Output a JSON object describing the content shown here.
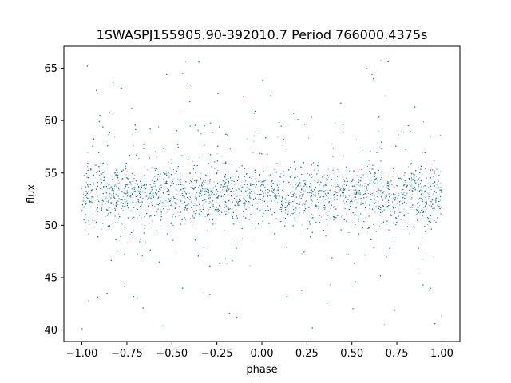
{
  "chart_data": {
    "type": "scatter",
    "title": "1SWASPJ155905.90-392010.7 Period 766000.4375s",
    "xlabel": "phase",
    "ylabel": "flux",
    "xlim": [
      -1.1,
      1.1
    ],
    "ylim": [
      38.9,
      67.1
    ],
    "xticks": [
      -1.0,
      -0.75,
      -0.5,
      -0.25,
      0.0,
      0.25,
      0.5,
      0.75,
      1.0
    ],
    "xtick_labels": [
      "−1.00",
      "−0.75",
      "−0.50",
      "−0.25",
      "0.00",
      "0.25",
      "0.50",
      "0.75",
      "1.00"
    ],
    "yticks": [
      40,
      45,
      50,
      55,
      60,
      65
    ],
    "ytick_labels": [
      "40",
      "45",
      "50",
      "55",
      "60",
      "65"
    ],
    "grid": false,
    "legend": "none",
    "marker_color": "#1f77b4",
    "series": [
      {
        "x_range": [
          -1.0,
          1.0
        ],
        "core_flux_range": [
          49.0,
          57.0
        ],
        "typical_flux_range": [
          46.0,
          60.0
        ],
        "extreme_flux_range": [
          40.0,
          66.0
        ],
        "points": [
          [
            -0.98,
            52.1
          ],
          [
            -0.95,
            55.4
          ],
          [
            -0.92,
            50.3
          ],
          [
            -0.88,
            53.7
          ],
          [
            -0.84,
            51.2
          ],
          [
            -0.8,
            54.8
          ],
          [
            -0.76,
            49.8
          ],
          [
            -0.72,
            53.0
          ],
          [
            -0.69,
            47.2
          ],
          [
            -0.65,
            55.6
          ],
          [
            -0.61,
            51.9
          ],
          [
            -0.57,
            46.5
          ],
          [
            -0.53,
            54.2
          ],
          [
            -0.49,
            52.7
          ],
          [
            -0.45,
            50.1
          ],
          [
            -0.41,
            56.3
          ],
          [
            -0.37,
            48.6
          ],
          [
            -0.33,
            53.5
          ],
          [
            -0.29,
            51.0
          ],
          [
            -0.25,
            55.0
          ],
          [
            -0.21,
            49.5
          ],
          [
            -0.17,
            52.8
          ],
          [
            -0.13,
            54.6
          ],
          [
            -0.09,
            50.7
          ],
          [
            -0.05,
            53.9
          ],
          [
            -0.01,
            51.4
          ],
          [
            0.03,
            56.8
          ],
          [
            0.07,
            49.2
          ],
          [
            0.11,
            52.3
          ],
          [
            0.15,
            54.1
          ],
          [
            0.19,
            50.6
          ],
          [
            0.23,
            53.3
          ],
          [
            0.27,
            48.9
          ],
          [
            0.31,
            55.7
          ],
          [
            0.35,
            51.7
          ],
          [
            0.39,
            46.9
          ],
          [
            0.43,
            53.6
          ],
          [
            0.47,
            50.4
          ],
          [
            0.51,
            55.2
          ],
          [
            0.55,
            52.0
          ],
          [
            0.59,
            49.7
          ],
          [
            0.63,
            54.4
          ],
          [
            0.67,
            51.3
          ],
          [
            0.71,
            47.8
          ],
          [
            0.75,
            53.8
          ],
          [
            0.79,
            50.9
          ],
          [
            0.83,
            55.9
          ],
          [
            0.87,
            52.5
          ],
          [
            0.91,
            49.4
          ],
          [
            0.95,
            54.0
          ],
          [
            0.99,
            51.6
          ],
          [
            -0.9,
            60.5
          ],
          [
            -0.78,
            63.1
          ],
          [
            -0.62,
            59.2
          ],
          [
            -0.4,
            61.8
          ],
          [
            -0.2,
            58.7
          ],
          [
            0.05,
            62.4
          ],
          [
            0.2,
            60.1
          ],
          [
            0.45,
            59.6
          ],
          [
            0.62,
            64.0
          ],
          [
            0.85,
            61.3
          ],
          [
            -0.86,
            43.5
          ],
          [
            -0.66,
            42.1
          ],
          [
            -0.44,
            44.0
          ],
          [
            -0.18,
            41.6
          ],
          [
            0.14,
            43.2
          ],
          [
            0.36,
            42.7
          ],
          [
            0.52,
            44.6
          ],
          [
            0.74,
            41.9
          ],
          [
            0.93,
            43.8
          ],
          [
            -0.97,
            65.2
          ],
          [
            -0.35,
            65.6
          ],
          [
            0.58,
            65.0
          ],
          [
            -0.55,
            40.4
          ],
          [
            0.28,
            40.2
          ],
          [
            0.96,
            40.6
          ]
        ]
      }
    ]
  }
}
